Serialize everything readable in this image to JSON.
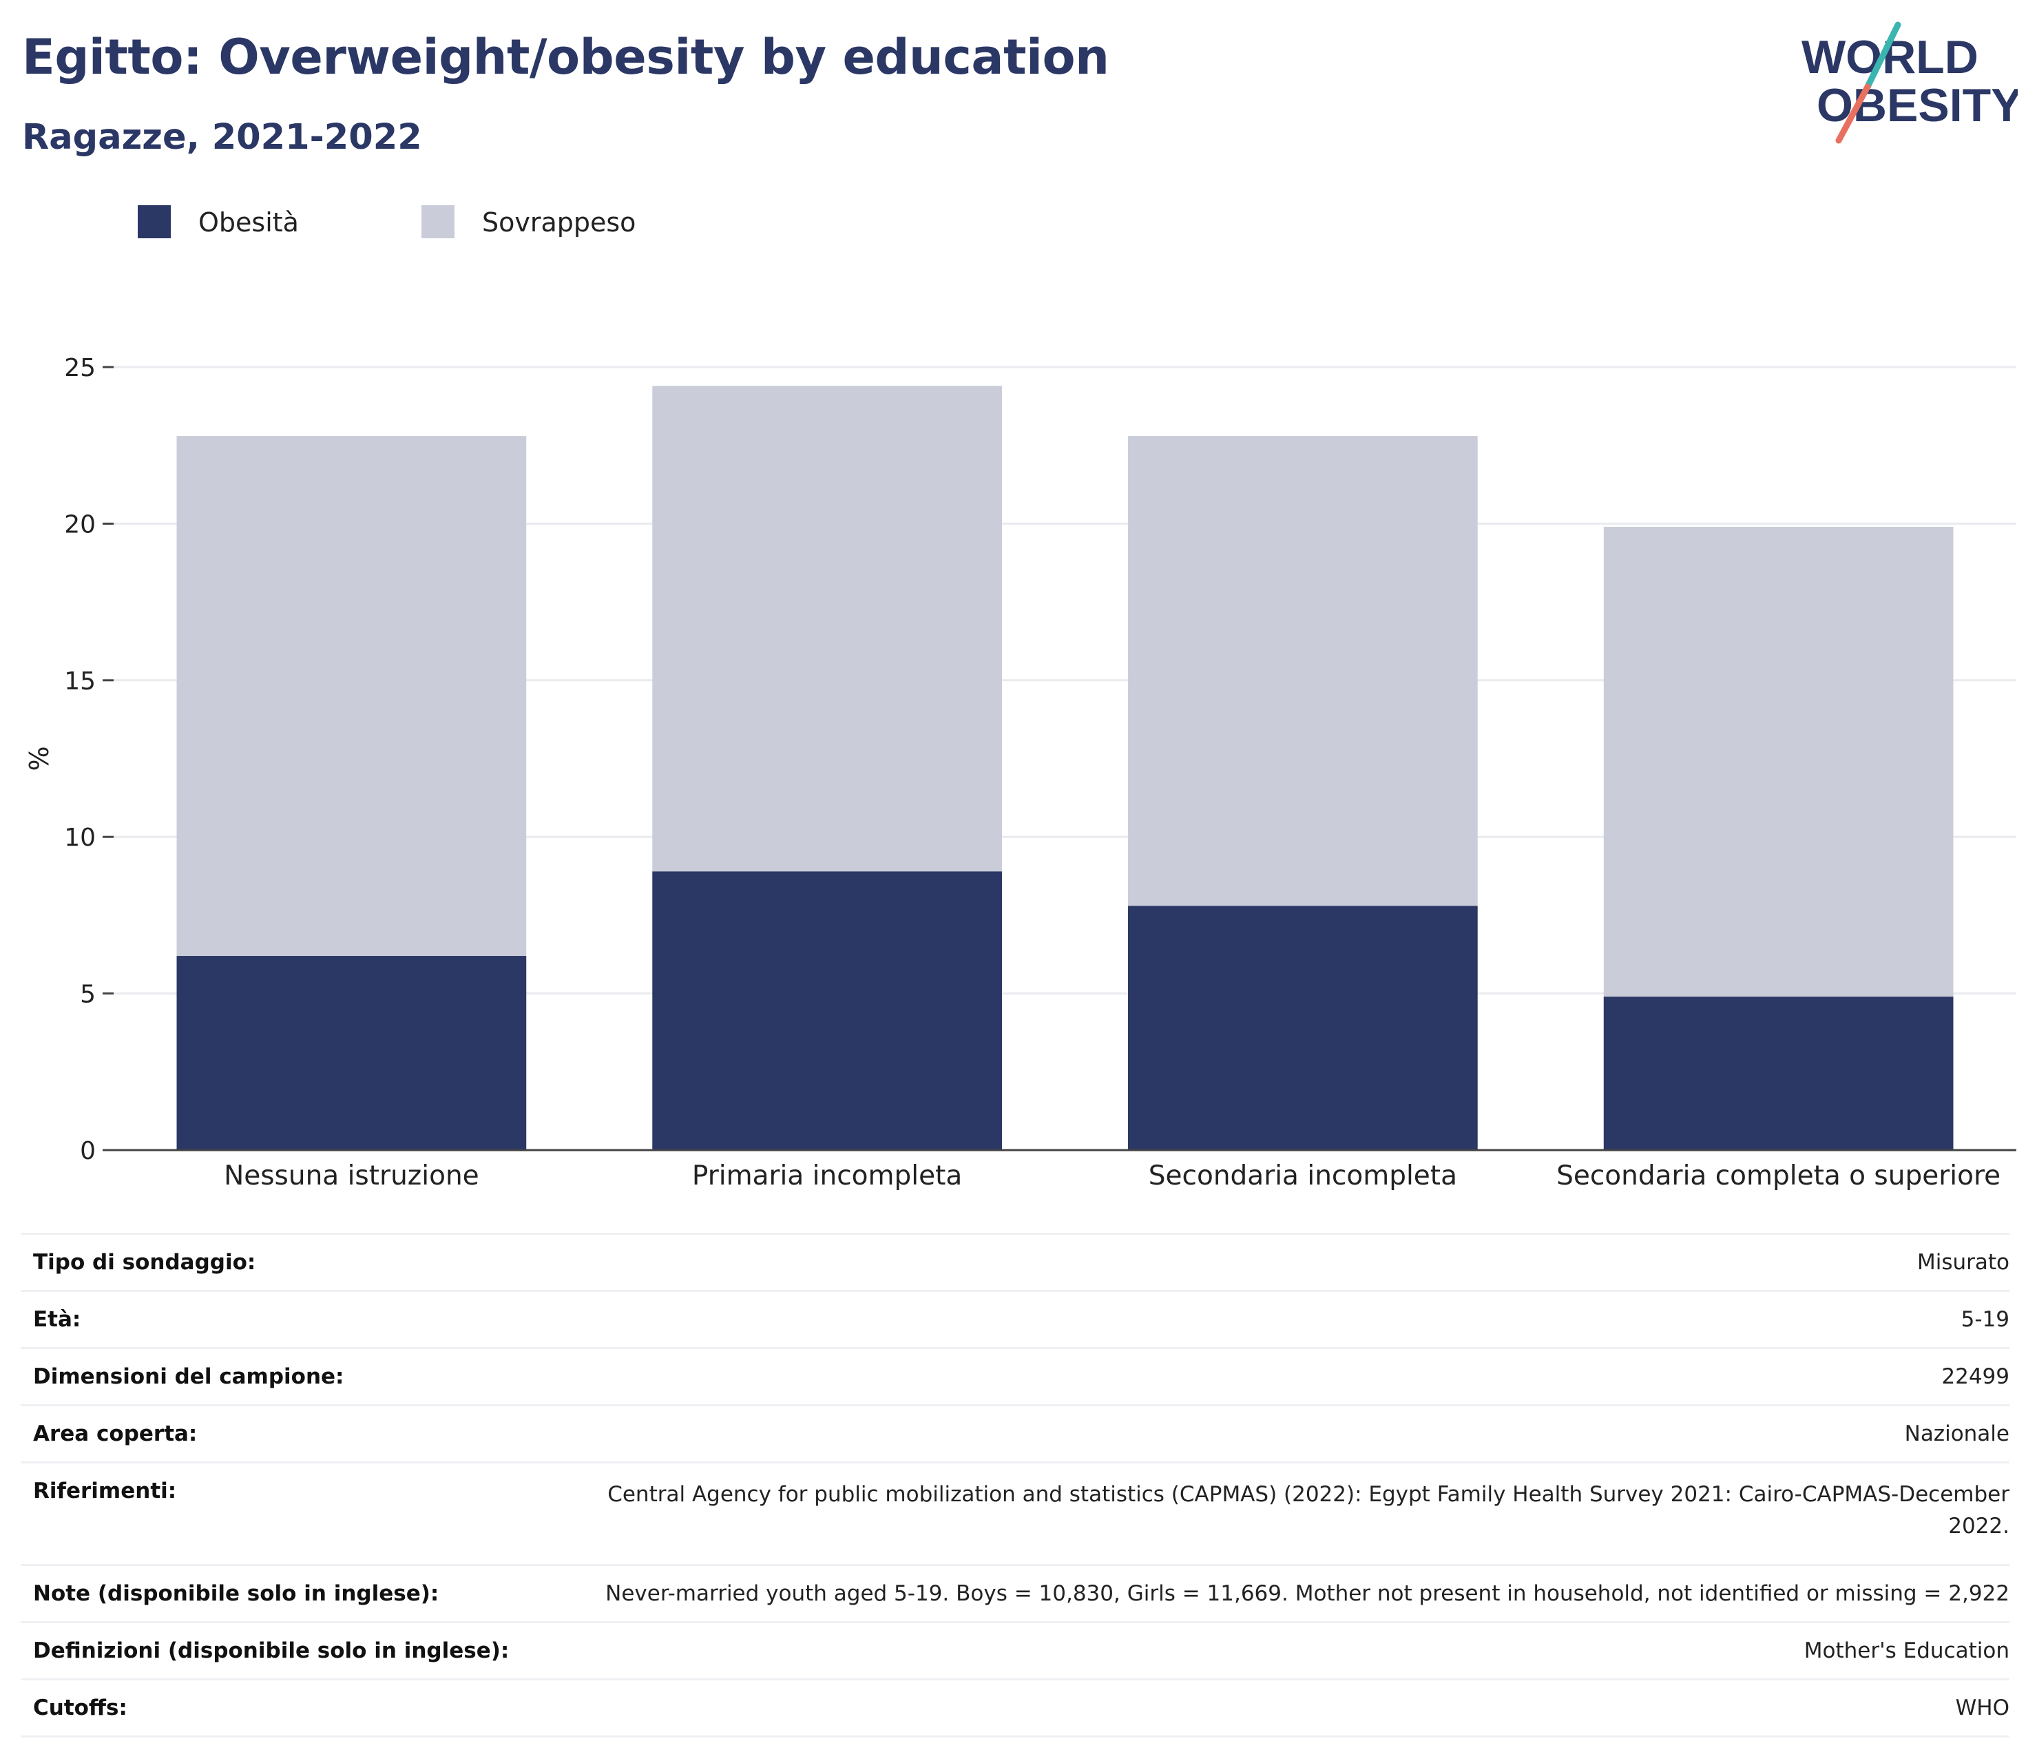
{
  "header": {
    "title": "Egitto: Overweight/obesity by education",
    "subtitle": "Ragazze, 2021-2022"
  },
  "logo": {
    "line1": "WORLD",
    "line2": "OBESITY",
    "colors": {
      "text": "#2b3765",
      "slash_top": "#3ab5b0",
      "slash_bottom": "#e8705f"
    }
  },
  "legend": [
    {
      "label": "Obesità",
      "color": "#2b3765"
    },
    {
      "label": "Sovrappeso",
      "color": "#cacdd9"
    }
  ],
  "chart_data": {
    "type": "bar",
    "stacked": true,
    "categories": [
      "Nessuna istruzione",
      "Primaria incompleta",
      "Secondaria incompleta",
      "Secondaria completa o superiore"
    ],
    "series": [
      {
        "name": "Obesità",
        "color": "#2b3765",
        "values": [
          6.2,
          8.9,
          7.8,
          4.9
        ]
      },
      {
        "name": "Sovrappeso",
        "color": "#cacdd9",
        "values": [
          16.6,
          15.5,
          15.0,
          15.0
        ]
      }
    ],
    "ylabel": "%",
    "ylim": [
      0,
      25
    ],
    "yticks": [
      0,
      5,
      10,
      15,
      20,
      25
    ],
    "grid": true,
    "legend_position": "top-left"
  },
  "table": {
    "rows": [
      {
        "label": "Tipo di sondaggio:",
        "value": "Misurato"
      },
      {
        "label": "Età:",
        "value": "5-19"
      },
      {
        "label": "Dimensioni del campione:",
        "value": "22499"
      },
      {
        "label": "Area coperta:",
        "value": "Nazionale"
      },
      {
        "label": "Riferimenti:",
        "value": "Central Agency for public mobilization and statistics (CAPMAS) (2022): Egypt Family Health Survey 2021: Cairo-CAPMAS-December 2022."
      },
      {
        "label": "Note (disponibile solo in inglese):",
        "value": "Never-married youth aged 5-19. Boys = 10,830, Girls = 11,669. Mother not present in household, not identified or missing = 2,922"
      },
      {
        "label": "Definizioni (disponibile solo in inglese):",
        "value": "Mother's Education"
      },
      {
        "label": "Cutoffs:",
        "value": "WHO"
      }
    ]
  }
}
